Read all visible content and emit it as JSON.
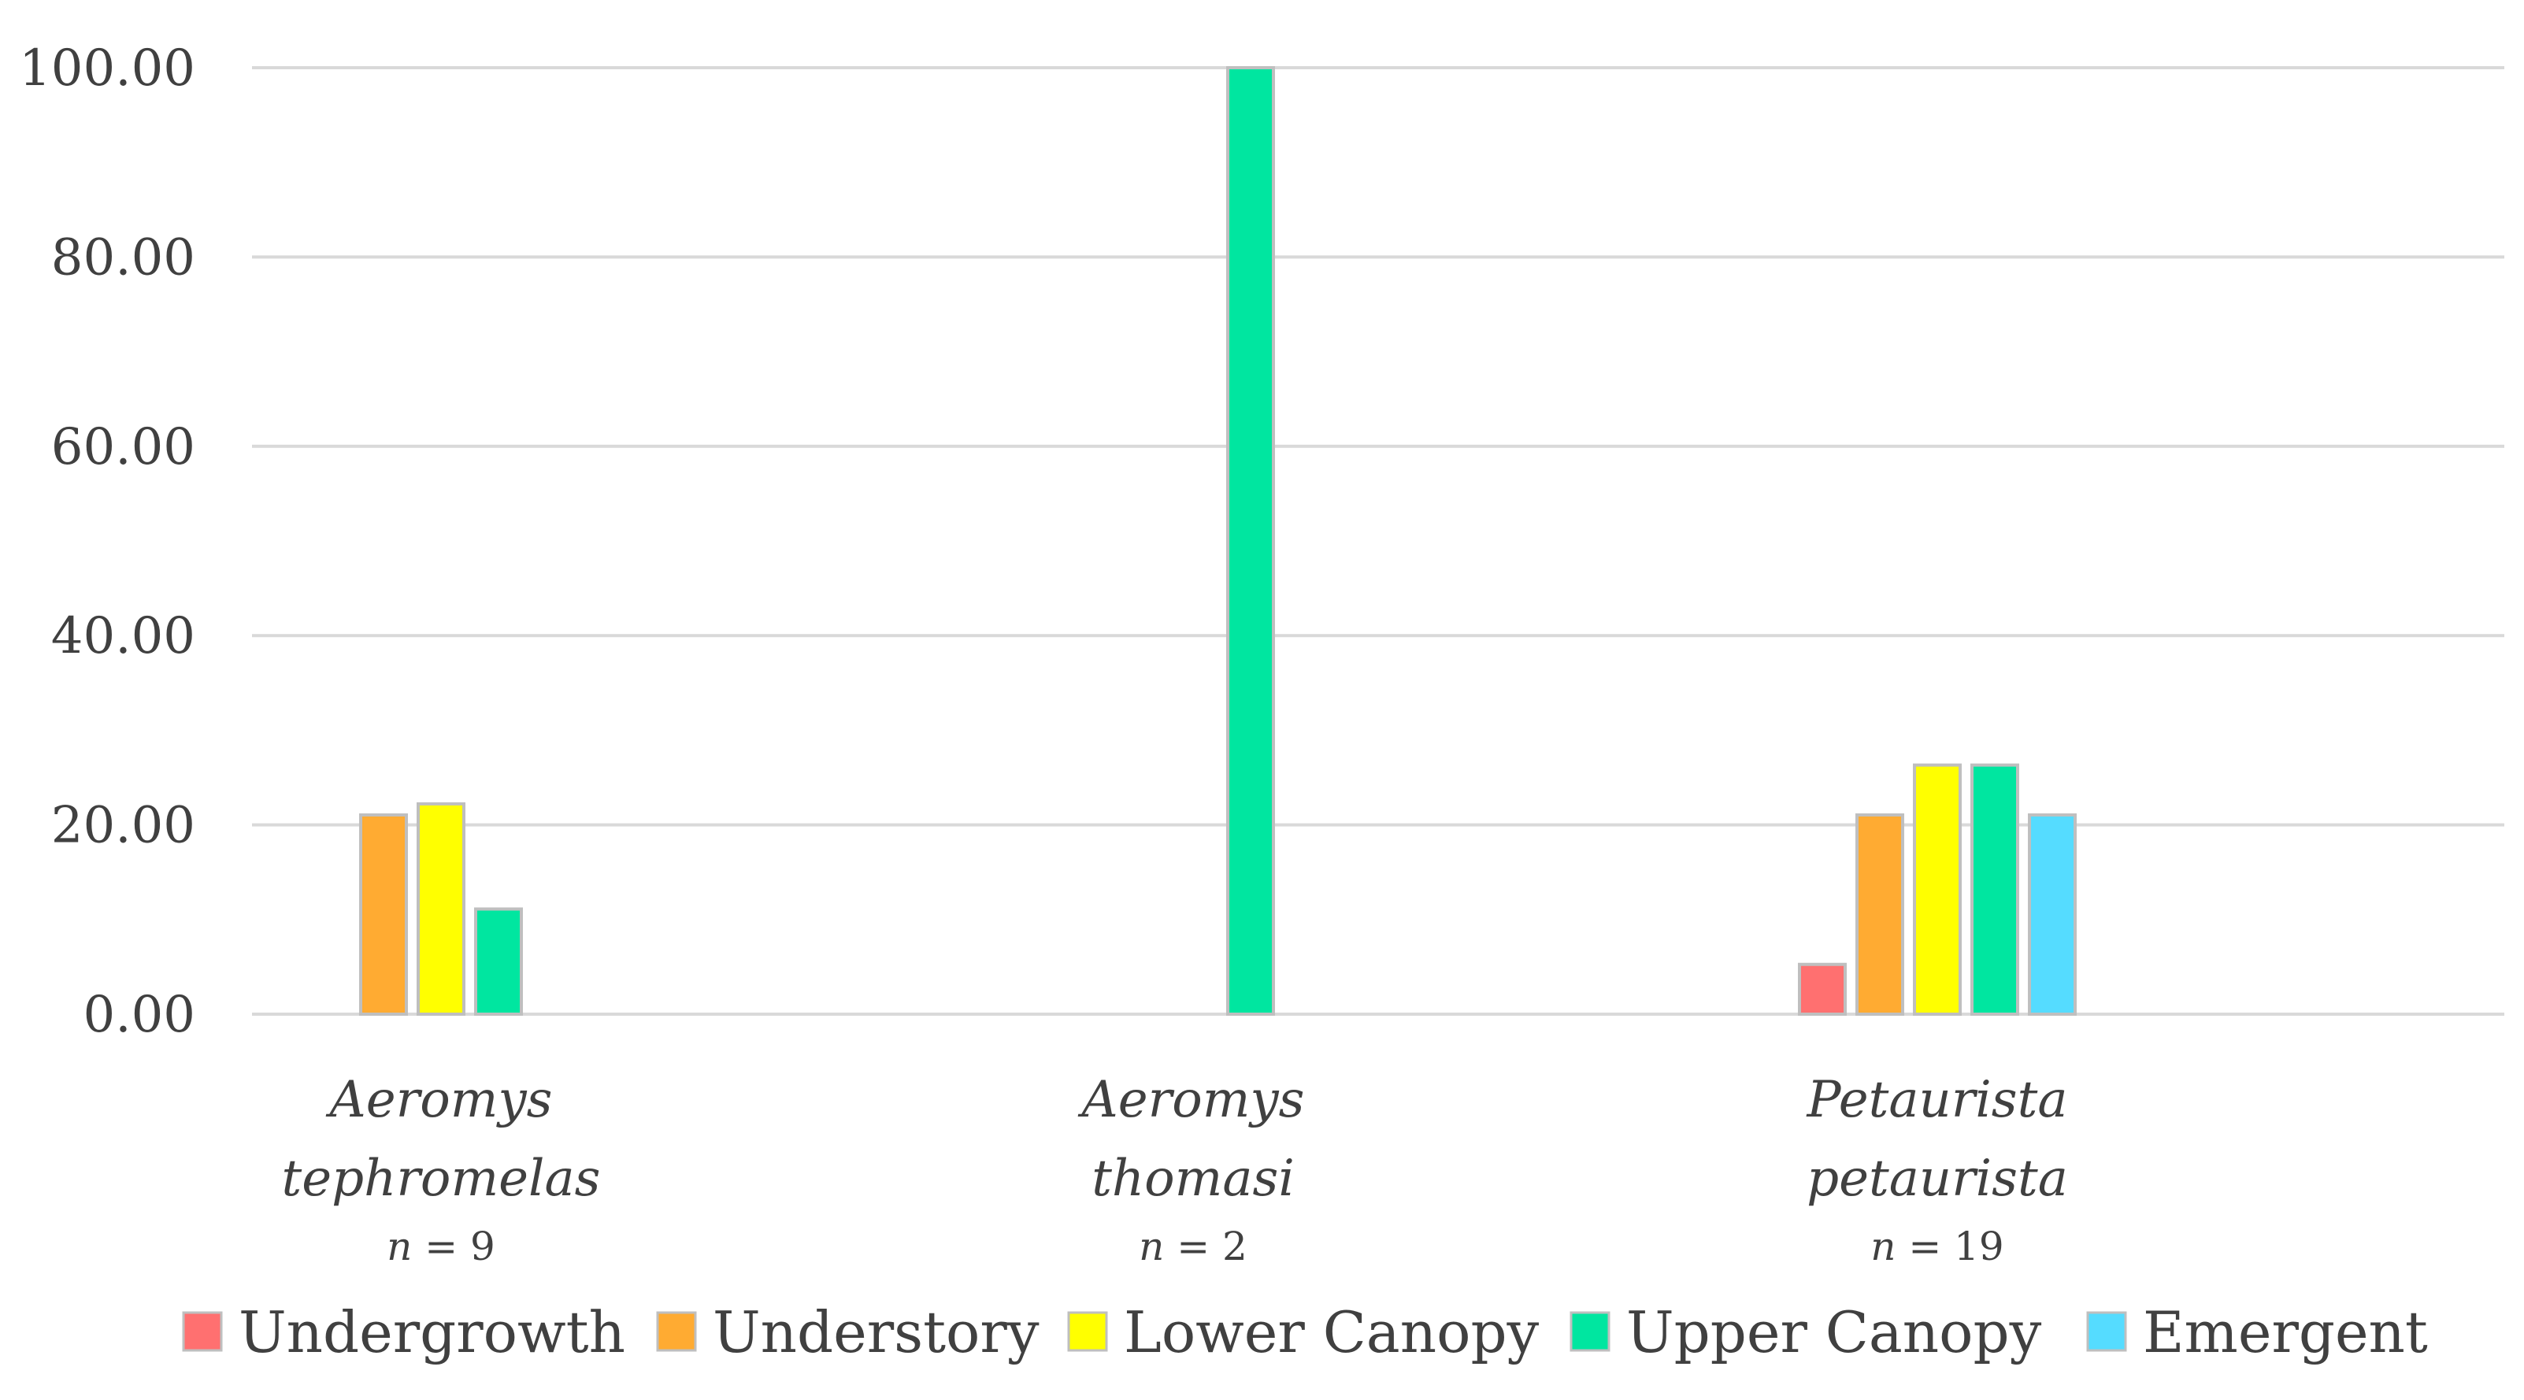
{
  "chart_data": {
    "type": "bar",
    "categories": [
      "Aeromys tephromelas",
      "Aeromys thomasi",
      "Petaurista petaurista"
    ],
    "category_lines": [
      [
        "Aeromys",
        "tephromelas"
      ],
      [
        "Aeromys",
        "thomasi"
      ],
      [
        "Petaurista",
        "petaurista"
      ]
    ],
    "sample_sizes": [
      "9",
      "2",
      "19"
    ],
    "n_symbol": "n",
    "series": [
      {
        "name": "Undergrowth",
        "color": "#ff7070",
        "values": [
          0,
          0,
          5.26
        ]
      },
      {
        "name": "Understory",
        "color": "#ffab32",
        "values": [
          21.05,
          0,
          21.05
        ]
      },
      {
        "name": "Lower Canopy",
        "color": "#ffff00",
        "values": [
          22.22,
          0,
          26.32
        ]
      },
      {
        "name": "Upper Canopy",
        "color": "#00e6a0",
        "values": [
          11.11,
          100.0,
          26.32
        ]
      },
      {
        "name": "Emergent",
        "color": "#55dcff",
        "values": [
          0,
          0,
          21.05
        ]
      }
    ],
    "ylim": [
      0,
      100
    ],
    "yticks": [
      "0.00",
      "20.00",
      "40.00",
      "60.00",
      "80.00",
      "100.00"
    ],
    "title": "",
    "xlabel": "",
    "ylabel": "",
    "grid": true,
    "legend": "bottom"
  }
}
